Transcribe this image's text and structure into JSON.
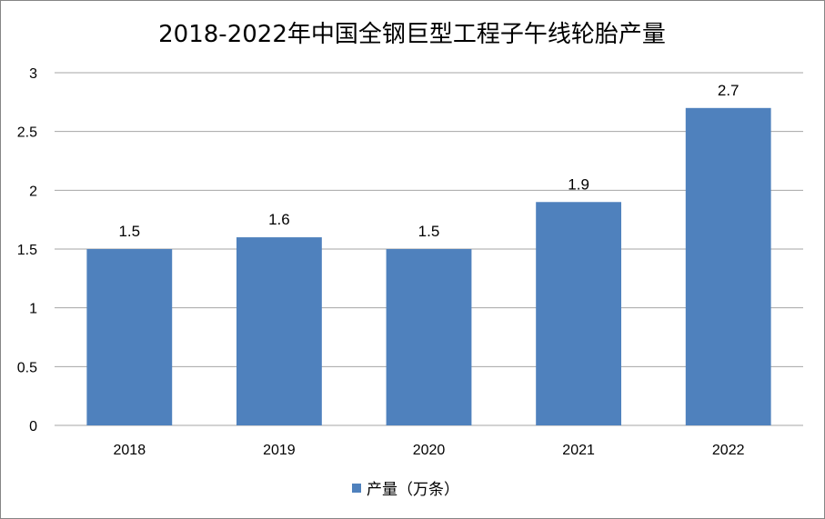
{
  "chart_data": {
    "type": "bar",
    "title": "2018-2022年中国全钢巨型工程子午线轮胎产量",
    "categories": [
      "2018",
      "2019",
      "2020",
      "2021",
      "2022"
    ],
    "series": [
      {
        "name": "产量（万条）",
        "values": [
          1.5,
          1.6,
          1.5,
          1.9,
          2.7
        ]
      }
    ],
    "data_labels": [
      "1.5",
      "1.6",
      "1.5",
      "1.9",
      "2.7"
    ],
    "yticks": [
      "0",
      "0.5",
      "1",
      "1.5",
      "2",
      "2.5",
      "3"
    ],
    "ylim": [
      0,
      3
    ],
    "grid": true,
    "legend_position": "bottom",
    "bar_color": "#4f81bd",
    "grid_color": "#a6a6a6"
  }
}
